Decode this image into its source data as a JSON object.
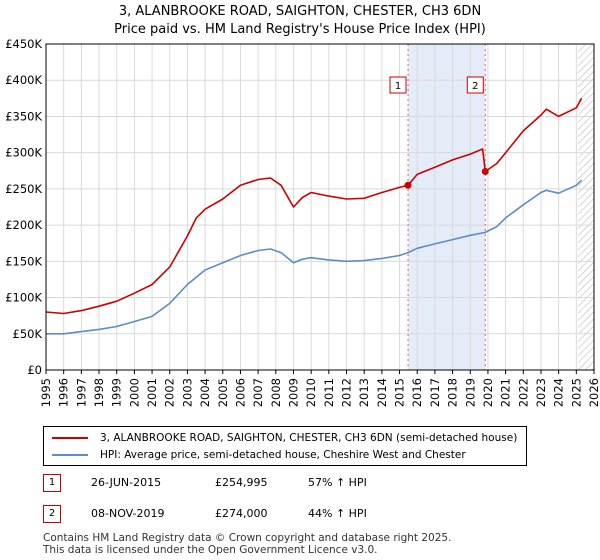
{
  "title_line1": "3, ALANBROOKE ROAD, SAIGHTON, CHESTER, CH3 6DN",
  "title_line2": "Price paid vs. HM Land Registry's House Price Index (HPI)",
  "chart_data": {
    "type": "line",
    "xlim": [
      1995,
      2026
    ],
    "ylim": [
      0,
      450000
    ],
    "y_ticks": [
      0,
      50000,
      100000,
      150000,
      200000,
      250000,
      300000,
      350000,
      400000,
      450000
    ],
    "y_tick_labels": [
      "£0",
      "£50K",
      "£100K",
      "£150K",
      "£200K",
      "£250K",
      "£300K",
      "£350K",
      "£400K",
      "£450K"
    ],
    "x_ticks": [
      1995,
      1996,
      1997,
      1998,
      1999,
      2000,
      2001,
      2002,
      2003,
      2004,
      2005,
      2006,
      2007,
      2008,
      2009,
      2010,
      2011,
      2012,
      2013,
      2014,
      2015,
      2016,
      2017,
      2018,
      2019,
      2020,
      2021,
      2022,
      2023,
      2024,
      2025,
      2026
    ],
    "grid": true,
    "shaded_region": [
      2015.48,
      2019.85
    ],
    "future_hatch_from": 2025.1,
    "series": [
      {
        "name": "3, ALANBROOKE ROAD, SAIGHTON, CHESTER, CH3 6DN (semi-detached house)",
        "color": "#cc0000",
        "x": [
          1995,
          1996,
          1997,
          1998,
          1999,
          2000,
          2001,
          2002,
          2003,
          2003.5,
          2004,
          2005,
          2006,
          2007,
          2007.7,
          2008.3,
          2009,
          2009.5,
          2010,
          2011,
          2012,
          2013,
          2014,
          2015,
          2015.48,
          2016,
          2017,
          2018,
          2019,
          2019.7,
          2019.85,
          2020.5,
          2021,
          2022,
          2023,
          2023.3,
          2024,
          2025,
          2025.3
        ],
        "values": [
          80000,
          78000,
          82000,
          88000,
          95000,
          106000,
          118000,
          142000,
          185000,
          210000,
          222000,
          236000,
          255000,
          263000,
          265000,
          255000,
          225000,
          238000,
          245000,
          240000,
          236000,
          237000,
          245000,
          252000,
          254995,
          270000,
          280000,
          290000,
          298000,
          305000,
          274000,
          285000,
          300000,
          330000,
          352000,
          360000,
          350000,
          362000,
          375000
        ]
      },
      {
        "name": "HPI: Average price, semi-detached house, Cheshire West and Chester",
        "color": "#5b8dc9",
        "x": [
          1995,
          1996,
          1997,
          1998,
          1999,
          2000,
          2001,
          2002,
          2003,
          2004,
          2005,
          2006,
          2007,
          2007.7,
          2008.3,
          2009,
          2009.5,
          2010,
          2011,
          2012,
          2013,
          2014,
          2015,
          2015.48,
          2016,
          2017,
          2018,
          2019,
          2019.85,
          2020.5,
          2021,
          2022,
          2023,
          2023.3,
          2024,
          2025,
          2025.3
        ],
        "values": [
          50000,
          50000,
          53000,
          56000,
          60000,
          67000,
          74000,
          92000,
          118000,
          138000,
          148000,
          158000,
          165000,
          167000,
          162000,
          148000,
          153000,
          155000,
          152000,
          150000,
          151000,
          154000,
          158000,
          162000,
          168000,
          174000,
          180000,
          186000,
          190000,
          198000,
          210000,
          228000,
          245000,
          248000,
          244000,
          255000,
          262000
        ]
      }
    ],
    "sales": [
      {
        "label": "1",
        "x": 2015.48,
        "value": 254995
      },
      {
        "label": "2",
        "x": 2019.85,
        "value": 274000
      }
    ]
  },
  "legend": {
    "property_label": "3, ALANBROOKE ROAD, SAIGHTON, CHESTER, CH3 6DN (semi-detached house)",
    "hpi_label": "HPI: Average price, semi-detached house, Cheshire West and Chester"
  },
  "sales_table": [
    {
      "num": "1",
      "date": "26-JUN-2015",
      "price": "£254,995",
      "hpi": "57% ↑ HPI"
    },
    {
      "num": "2",
      "date": "08-NOV-2019",
      "price": "£274,000",
      "hpi": "44% ↑ HPI"
    }
  ],
  "footer_line1": "Contains HM Land Registry data © Crown copyright and database right 2025.",
  "footer_line2": "This data is licensed under the Open Government Licence v3.0."
}
